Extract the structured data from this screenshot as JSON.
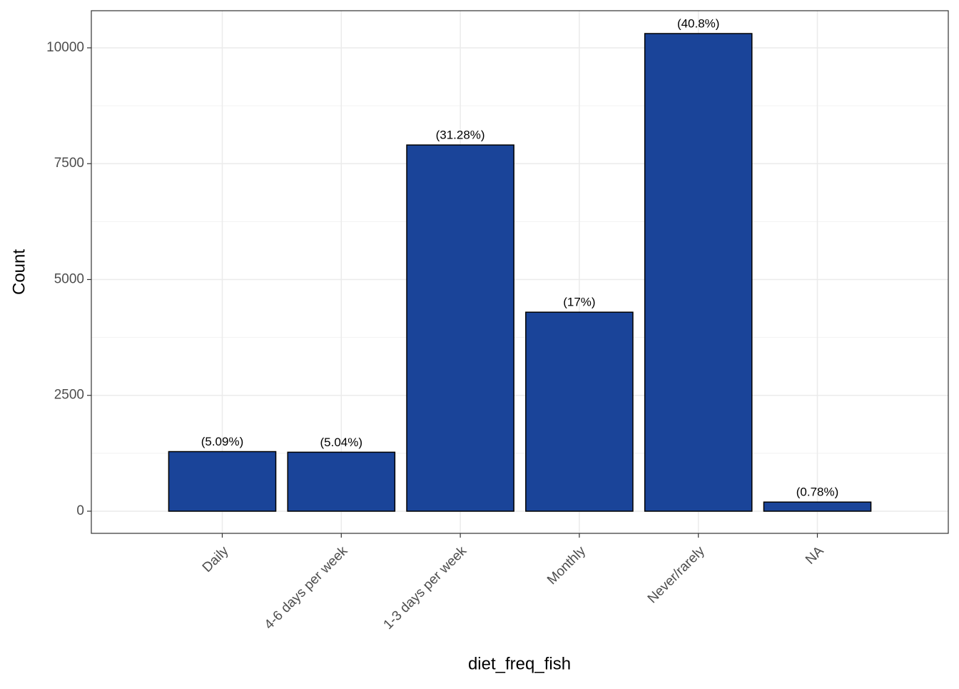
{
  "chart_data": {
    "type": "bar",
    "x_label": "diet_freq_fish",
    "y_label": "Count",
    "categories": [
      "Daily",
      "4-6 days per week",
      "1-3 days per week",
      "Monthly",
      "Never/rarely",
      "NA"
    ],
    "values": [
      1286,
      1273,
      7903,
      4295,
      10308,
      197
    ],
    "bar_labels": [
      "(5.09%)",
      "(5.04%)",
      "(31.28%)",
      "(17%)",
      "(40.8%)",
      "(0.78%)"
    ],
    "color": "#1a4499",
    "ylim": [
      -478,
      10801
    ],
    "yticks": [
      0,
      2500,
      5000,
      7500,
      10000
    ],
    "grid": true
  }
}
